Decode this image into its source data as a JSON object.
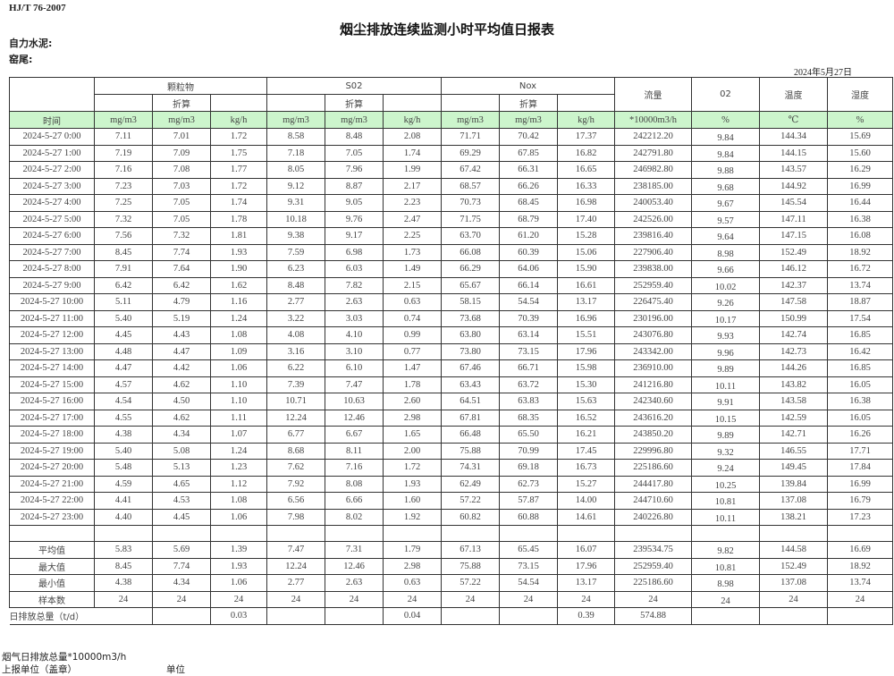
{
  "header": {
    "standard": "HJ/T  76-2007",
    "title": "烟尘排放连续监测小时平均值日报表",
    "company": "自力水泥:",
    "kiln": "窑尾:",
    "date": "2024年5月27日"
  },
  "columns": {
    "group_particle": "颗粒物",
    "group_so2": "S02",
    "group_nox": "Nox",
    "converted": "折算",
    "flow": "流量",
    "o2": "02",
    "temp": "温度",
    "humidity": "湿度",
    "time": "时间",
    "units": [
      "mg/m3",
      "mg/m3",
      "kg/h",
      "mg/m3",
      "mg/m3",
      "kg/h",
      "mg/m3",
      "mg/m3",
      "kg/h",
      "*10000m3/h",
      "%",
      "℃",
      "%"
    ]
  },
  "rows": [
    [
      "2024-5-27 0:00",
      "7.11",
      "7.01",
      "1.72",
      "8.58",
      "8.48",
      "2.08",
      "71.71",
      "70.42",
      "17.37",
      "242212.20",
      "9.84",
      "144.34",
      "15.69"
    ],
    [
      "2024-5-27 1:00",
      "7.19",
      "7.09",
      "1.75",
      "7.18",
      "7.05",
      "1.74",
      "69.29",
      "67.85",
      "16.82",
      "242791.80",
      "9.84",
      "144.15",
      "15.60"
    ],
    [
      "2024-5-27 2:00",
      "7.16",
      "7.08",
      "1.77",
      "8.05",
      "7.96",
      "1.99",
      "67.42",
      "66.31",
      "16.65",
      "246982.80",
      "9.88",
      "143.57",
      "16.29"
    ],
    [
      "2024-5-27 3:00",
      "7.23",
      "7.03",
      "1.72",
      "9.12",
      "8.87",
      "2.17",
      "68.57",
      "66.26",
      "16.33",
      "238185.00",
      "9.68",
      "144.92",
      "16.99"
    ],
    [
      "2024-5-27 4:00",
      "7.25",
      "7.05",
      "1.74",
      "9.31",
      "9.05",
      "2.23",
      "70.73",
      "68.45",
      "16.98",
      "240053.40",
      "9.67",
      "145.54",
      "16.44"
    ],
    [
      "2024-5-27 5:00",
      "7.32",
      "7.05",
      "1.78",
      "10.18",
      "9.76",
      "2.47",
      "71.75",
      "68.79",
      "17.40",
      "242526.00",
      "9.57",
      "147.11",
      "16.38"
    ],
    [
      "2024-5-27 6:00",
      "7.56",
      "7.32",
      "1.81",
      "9.38",
      "9.17",
      "2.25",
      "63.70",
      "61.20",
      "15.28",
      "239816.40",
      "9.64",
      "147.15",
      "16.08"
    ],
    [
      "2024-5-27 7:00",
      "8.45",
      "7.74",
      "1.93",
      "7.59",
      "6.98",
      "1.73",
      "66.08",
      "60.39",
      "15.06",
      "227906.40",
      "8.98",
      "152.49",
      "18.92"
    ],
    [
      "2024-5-27 8:00",
      "7.91",
      "7.64",
      "1.90",
      "6.23",
      "6.03",
      "1.49",
      "66.29",
      "64.06",
      "15.90",
      "239838.00",
      "9.66",
      "146.12",
      "16.72"
    ],
    [
      "2024-5-27 9:00",
      "6.42",
      "6.42",
      "1.62",
      "8.48",
      "7.82",
      "2.15",
      "65.67",
      "66.14",
      "16.61",
      "252959.40",
      "10.02",
      "142.37",
      "13.74"
    ],
    [
      "2024-5-27 10:00",
      "5.11",
      "4.79",
      "1.16",
      "2.77",
      "2.63",
      "0.63",
      "58.15",
      "54.54",
      "13.17",
      "226475.40",
      "9.26",
      "147.58",
      "18.87"
    ],
    [
      "2024-5-27 11:00",
      "5.40",
      "5.19",
      "1.24",
      "3.22",
      "3.03",
      "0.74",
      "73.68",
      "70.39",
      "16.96",
      "230196.00",
      "10.17",
      "150.99",
      "17.54"
    ],
    [
      "2024-5-27 12:00",
      "4.45",
      "4.43",
      "1.08",
      "4.08",
      "4.10",
      "0.99",
      "63.80",
      "63.14",
      "15.51",
      "243076.80",
      "9.93",
      "142.74",
      "16.85"
    ],
    [
      "2024-5-27 13:00",
      "4.48",
      "4.47",
      "1.09",
      "3.16",
      "3.10",
      "0.77",
      "73.80",
      "73.15",
      "17.96",
      "243342.00",
      "9.96",
      "142.73",
      "16.42"
    ],
    [
      "2024-5-27 14:00",
      "4.47",
      "4.42",
      "1.06",
      "6.22",
      "6.10",
      "1.47",
      "67.46",
      "66.71",
      "15.98",
      "236910.00",
      "9.89",
      "144.26",
      "16.85"
    ],
    [
      "2024-5-27 15:00",
      "4.57",
      "4.62",
      "1.10",
      "7.39",
      "7.47",
      "1.78",
      "63.43",
      "63.72",
      "15.30",
      "241216.80",
      "10.11",
      "143.82",
      "16.05"
    ],
    [
      "2024-5-27 16:00",
      "4.54",
      "4.50",
      "1.10",
      "10.71",
      "10.63",
      "2.60",
      "64.51",
      "63.83",
      "15.63",
      "242340.60",
      "9.91",
      "143.58",
      "16.38"
    ],
    [
      "2024-5-27 17:00",
      "4.55",
      "4.62",
      "1.11",
      "12.24",
      "12.46",
      "2.98",
      "67.81",
      "68.35",
      "16.52",
      "243616.20",
      "10.15",
      "142.59",
      "16.05"
    ],
    [
      "2024-5-27 18:00",
      "4.38",
      "4.34",
      "1.07",
      "6.77",
      "6.67",
      "1.65",
      "66.48",
      "65.50",
      "16.21",
      "243850.20",
      "9.89",
      "142.71",
      "16.26"
    ],
    [
      "2024-5-27 19:00",
      "5.40",
      "5.08",
      "1.24",
      "8.68",
      "8.11",
      "2.00",
      "75.88",
      "70.99",
      "17.45",
      "229996.80",
      "9.32",
      "146.55",
      "17.71"
    ],
    [
      "2024-5-27 20:00",
      "5.48",
      "5.13",
      "1.23",
      "7.62",
      "7.16",
      "1.72",
      "74.31",
      "69.18",
      "16.73",
      "225186.60",
      "9.24",
      "149.45",
      "17.84"
    ],
    [
      "2024-5-27 21:00",
      "4.59",
      "4.65",
      "1.12",
      "7.92",
      "8.08",
      "1.93",
      "62.49",
      "62.73",
      "15.27",
      "244417.80",
      "10.25",
      "139.84",
      "16.99"
    ],
    [
      "2024-5-27 22:00",
      "4.41",
      "4.53",
      "1.08",
      "6.56",
      "6.66",
      "1.60",
      "57.22",
      "57.87",
      "14.00",
      "244710.60",
      "10.81",
      "137.08",
      "16.79"
    ],
    [
      "2024-5-27 23:00",
      "4.40",
      "4.45",
      "1.06",
      "7.98",
      "8.02",
      "1.92",
      "60.82",
      "60.88",
      "14.61",
      "240226.80",
      "10.11",
      "138.21",
      "17.23"
    ]
  ],
  "stats": [
    [
      "平均值",
      "5.83",
      "5.69",
      "1.39",
      "7.47",
      "7.31",
      "1.79",
      "67.13",
      "65.45",
      "16.07",
      "239534.75",
      "9.82",
      "144.58",
      "16.69"
    ],
    [
      "最大值",
      "8.45",
      "7.74",
      "1.93",
      "12.24",
      "12.46",
      "2.98",
      "75.88",
      "73.15",
      "17.96",
      "252959.40",
      "10.81",
      "152.49",
      "18.92"
    ],
    [
      "最小值",
      "4.38",
      "4.34",
      "1.06",
      "2.77",
      "2.63",
      "0.63",
      "57.22",
      "54.54",
      "13.17",
      "225186.60",
      "8.98",
      "137.08",
      "13.74"
    ],
    [
      "样本数",
      "24",
      "24",
      "24",
      "24",
      "24",
      "24",
      "24",
      "24",
      "24",
      "24",
      "24",
      "24",
      "24"
    ]
  ],
  "daily_total": {
    "label": "日排放总量（t/d）",
    "values": [
      "",
      "0.03",
      "",
      "",
      "0.04",
      "",
      "",
      "0.39",
      "574.88",
      "",
      "",
      ""
    ]
  },
  "footer": {
    "flue_gas_total": "烟气日排放总量*10000m3/h",
    "reporting_unit": "上报单位（盖章）",
    "unit": "单位"
  }
}
